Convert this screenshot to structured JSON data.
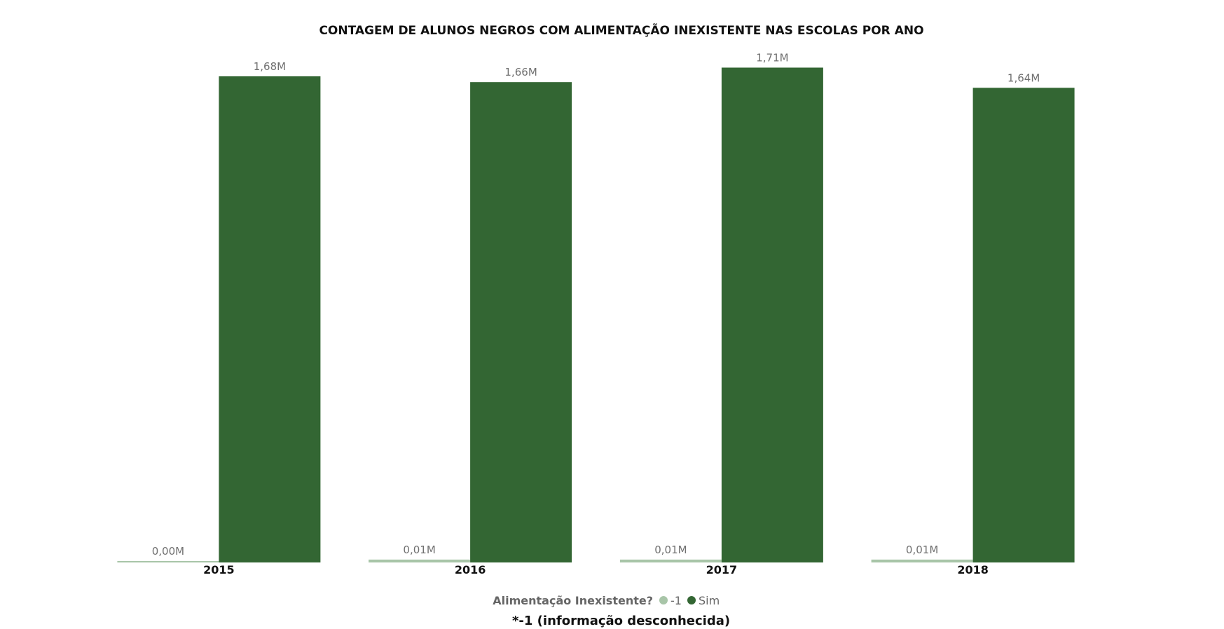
{
  "chart_data": {
    "type": "bar",
    "title": "CONTAGEM DE ALUNOS NEGROS COM ALIMENTAÇÃO INEXISTENTE NAS ESCOLAS POR ANO",
    "categories": [
      "2015",
      "2016",
      "2017",
      "2018"
    ],
    "unit": "M",
    "series": [
      {
        "name": "-1",
        "color": "#a8c5a8",
        "values": [
          0.0,
          0.01,
          0.01,
          0.01
        ],
        "labels": [
          "0,00M",
          "0,01M",
          "0,01M",
          "0,01M"
        ]
      },
      {
        "name": "Sim",
        "color": "#336633",
        "values": [
          1.68,
          1.66,
          1.71,
          1.64
        ],
        "labels": [
          "1,68M",
          "1,66M",
          "1,71M",
          "1,64M"
        ]
      }
    ],
    "ylim": [
      0,
      1.75
    ],
    "grid": false,
    "legend": {
      "title": "Alimentação Inexistente?",
      "placement": "bottom-center"
    },
    "footnote": "*-1 (informação desconhecida)"
  }
}
